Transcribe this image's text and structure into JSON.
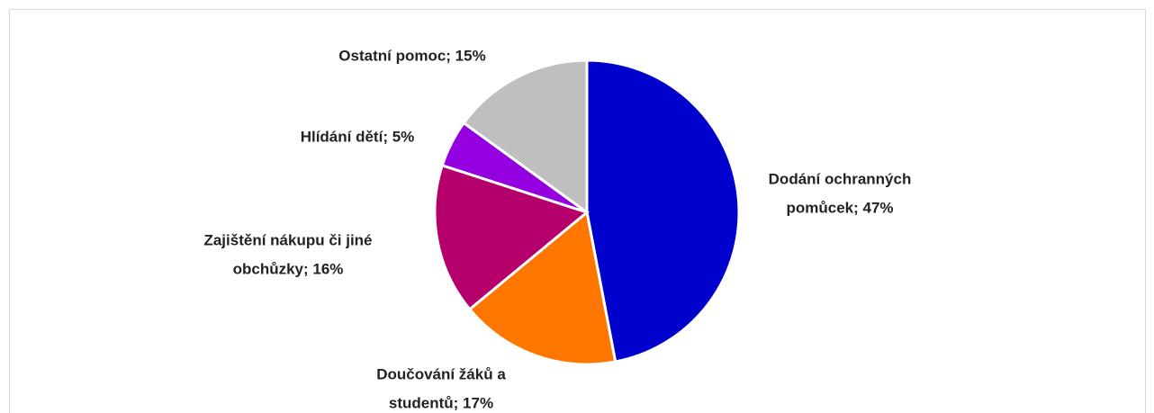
{
  "chart_data": {
    "type": "pie",
    "values": [
      47,
      17,
      16,
      5,
      15
    ],
    "value_labels": [
      [
        "Dodání ochranných",
        "pomůcek; 47%"
      ],
      [
        "Doučování žáků a",
        "studentů; 17%"
      ],
      [
        "Zajištění nákupu či jiné",
        "obchůzky; 16%"
      ],
      [
        "Hlídání dětí; 5%"
      ],
      [
        "Ostatní pomoc; 15%"
      ]
    ],
    "colors": [
      "#0000cc",
      "#ff7700",
      "#b5006b",
      "#9400e0",
      "#bfbfbf"
    ]
  }
}
